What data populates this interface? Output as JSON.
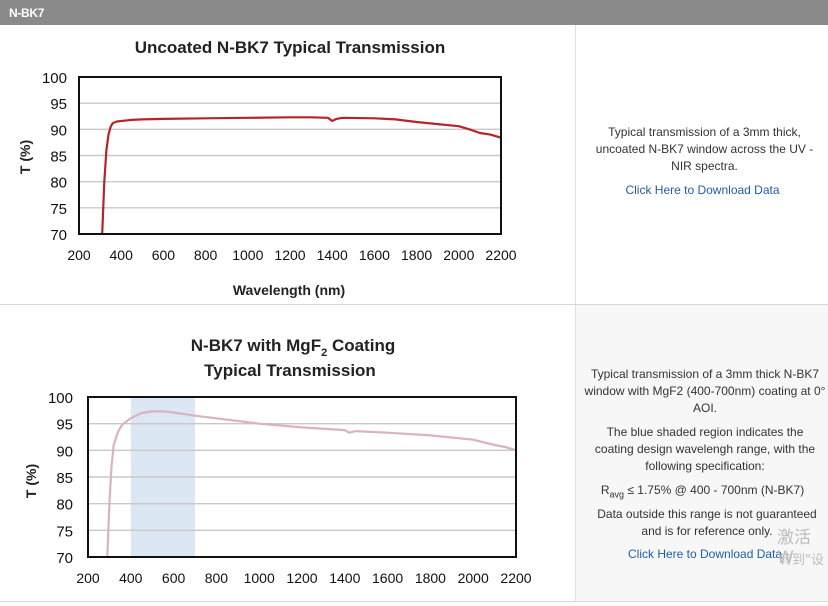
{
  "header": {
    "title": "N-BK7"
  },
  "rows": [
    {
      "description": "Typical transmission of a 3mm thick, uncoated N-BK7 window across the UV - NIR spectra.",
      "link": "Click Here to Download Data"
    },
    {
      "description": "Typical transmission of a 3mm thick N-BK7 window with MgF2 (400-700nm) coating at 0° AOI.",
      "shaded_note": "The blue shaded region indicates the coating design wavelengh range, with the following specification:",
      "spec_symbol": "R",
      "spec_subscript": "avg",
      "spec_text": "≤ 1.75% @ 400 - 700nm (N-BK7)",
      "outside_note": "Data outside this range is not guaranteed and is for reference only.",
      "link": "Click Here to Download Data"
    }
  ],
  "watermark": {
    "line1": "激活 W",
    "line2": "转到\"设"
  },
  "chart_data": [
    {
      "type": "line",
      "title": "Uncoated N-BK7 Typical Transmission",
      "xlabel": "Wavelength (nm)",
      "ylabel": "T (%)",
      "xlim": [
        200,
        2200
      ],
      "ylim": [
        70,
        100
      ],
      "xticks": [
        "200",
        "400",
        "600",
        "800",
        "1000",
        "1200",
        "1400",
        "1600",
        "1800",
        "2000",
        "2200"
      ],
      "yticks": [
        "100",
        "95",
        "90",
        "85",
        "80",
        "75",
        "70"
      ],
      "grid": true,
      "color": "#b5242b",
      "series": [
        {
          "x": [
            310,
            320,
            330,
            340,
            350,
            360,
            380,
            400,
            450,
            500,
            600,
            800,
            1000,
            1200,
            1300,
            1380,
            1400,
            1420,
            1450,
            1600,
            1700,
            1800,
            1900,
            2000,
            2050,
            2100,
            2150,
            2200
          ],
          "y": [
            70,
            80,
            86,
            89,
            90.5,
            91.2,
            91.5,
            91.6,
            91.8,
            91.9,
            92.0,
            92.1,
            92.2,
            92.3,
            92.3,
            92.2,
            91.6,
            92.0,
            92.2,
            92.1,
            91.9,
            91.4,
            91.0,
            90.6,
            90.0,
            89.3,
            89.0,
            88.4
          ]
        }
      ]
    },
    {
      "type": "line",
      "title": "N-BK7 with MgF2 Coating Typical Transmission",
      "title_line1_pre": "N-BK7 with MgF",
      "title_line1_sub": "2",
      "title_line1_post": " Coating",
      "title_line2": "Typical Transmission",
      "xlabel": "",
      "ylabel": "T (%)",
      "xlim": [
        200,
        2200
      ],
      "ylim": [
        70,
        100
      ],
      "xticks": [
        "200",
        "400",
        "600",
        "800",
        "1000",
        "1200",
        "1400",
        "1600",
        "1800",
        "2000",
        "2200"
      ],
      "yticks": [
        "100",
        "95",
        "90",
        "85",
        "80",
        "75",
        "70"
      ],
      "grid": true,
      "shaded_range": [
        400,
        700
      ],
      "shade_color": "#dbe8f3",
      "color": "#d9b3bd",
      "series": [
        {
          "x": [
            290,
            300,
            310,
            320,
            340,
            360,
            400,
            450,
            500,
            550,
            600,
            700,
            800,
            1000,
            1200,
            1400,
            1420,
            1450,
            1600,
            1800,
            2000,
            2100,
            2150,
            2200
          ],
          "y": [
            70,
            80,
            87,
            91,
            93.5,
            94.8,
            96,
            97,
            97.3,
            97.3,
            97.1,
            96.5,
            96,
            95,
            94.3,
            93.8,
            93.3,
            93.6,
            93.3,
            92.8,
            92.0,
            91.0,
            90.6,
            90.0
          ]
        }
      ]
    }
  ]
}
